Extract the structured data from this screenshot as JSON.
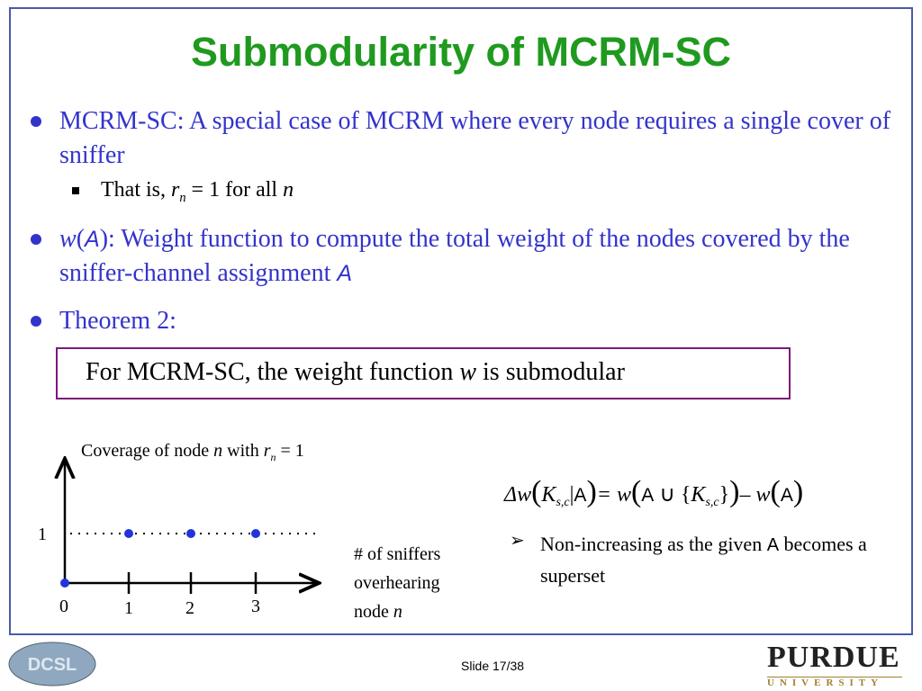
{
  "title": "Submodularity of MCRM-SC",
  "bullets": [
    {
      "text": [
        "MCRM-SC: A special case of MCRM where every node requires a single cover of sniffer"
      ],
      "sub": [
        "That is, ",
        "r",
        "n",
        " = 1 for all ",
        "n"
      ]
    },
    {
      "text": [
        "w",
        "(",
        "A",
        "): Weight function to compute the total weight of the nodes covered by the sniffer-channel assignment ",
        "A"
      ]
    },
    {
      "text": [
        "Theorem 2:"
      ]
    }
  ],
  "theorem": [
    "For MCRM-SC, the weight function ",
    "w",
    " is submodular"
  ],
  "figure": {
    "caption": [
      "Coverage of node ",
      "n",
      " with ",
      "r",
      "n",
      " = 1"
    ],
    "y_label": "1",
    "x_labels": [
      "0",
      "1",
      "2",
      "3"
    ],
    "x_axis_label": [
      "# of sniffers",
      "overhearing",
      "node ",
      "n"
    ]
  },
  "formula": [
    "Δw",
    "(",
    "K",
    "s,c",
    "|",
    "A",
    ")",
    "= w",
    "(",
    "A",
    " ∪ ",
    "{",
    "K",
    "s,c",
    "}",
    ")",
    "– w",
    "(",
    "A",
    ")"
  ],
  "note": [
    "Non-increasing as the given ",
    "A",
    " becomes a superset"
  ],
  "footer": {
    "slide": "Slide 17/38",
    "logo_left": "DCSL",
    "logo_right": "PURDUE",
    "logo_right_sub": "UNIVERSITY"
  }
}
